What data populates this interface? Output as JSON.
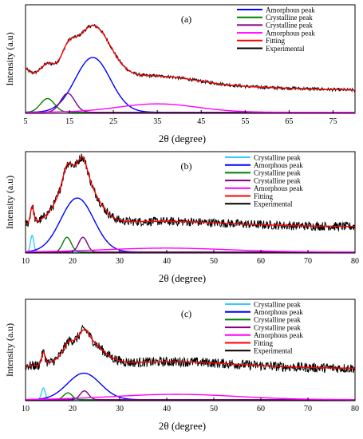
{
  "chart_data": [
    {
      "type": "line",
      "panel_label": "(a)",
      "xlabel": "2θ (degree)",
      "ylabel": "Intensity (a.u)",
      "xlim": [
        5,
        80
      ],
      "xticks": [
        5,
        15,
        25,
        35,
        45,
        55,
        65,
        75
      ],
      "ylim": [
        0,
        1
      ],
      "grid": false,
      "legend_position": "top-right",
      "series": [
        {
          "name": "Amorphous peak",
          "color": "#0000ff",
          "kind": "gaussian",
          "center": 20.3,
          "width": 4.0,
          "height": 0.52
        },
        {
          "name": "Crystalline peak",
          "color": "#008000",
          "kind": "gaussian",
          "center": 10.0,
          "width": 1.6,
          "height": 0.13
        },
        {
          "name": "Crystalline peak",
          "color": "#800080",
          "kind": "gaussian",
          "center": 14.6,
          "width": 1.6,
          "height": 0.18
        },
        {
          "name": "Amorphous peak",
          "color": "#ff00ff",
          "kind": "gaussian",
          "center": 35.0,
          "width": 9.0,
          "height": 0.08
        },
        {
          "name": "Fitting",
          "color": "#ff0000",
          "kind": "fit",
          "baseline": 0.22,
          "baseline_slope": 0.0012,
          "edge_rise": 0.12
        },
        {
          "name": "Experimental",
          "color": "#000000",
          "kind": "noisy",
          "noise": 0.015,
          "step": 0.12
        }
      ]
    },
    {
      "type": "line",
      "panel_label": "(b)",
      "xlabel": "2θ (degree)",
      "ylabel": "Intensity (a.u)",
      "xlim": [
        10,
        80
      ],
      "xticks": [
        10,
        20,
        30,
        40,
        50,
        60,
        70,
        80
      ],
      "ylim": [
        0,
        1
      ],
      "grid": false,
      "legend_position": "top-right",
      "series": [
        {
          "name": "Crystalline peak",
          "color": "#33ccff",
          "kind": "gaussian",
          "center": 11.4,
          "width": 0.35,
          "height": 0.17
        },
        {
          "name": "Amorphous peak",
          "color": "#0000ff",
          "kind": "gaussian",
          "center": 21.0,
          "width": 3.5,
          "height": 0.55
        },
        {
          "name": "Crystalline peak",
          "color": "#008000",
          "kind": "gaussian",
          "center": 18.8,
          "width": 0.9,
          "height": 0.15
        },
        {
          "name": "Crystalline peak",
          "color": "#800080",
          "kind": "gaussian",
          "center": 22.2,
          "width": 0.9,
          "height": 0.15
        },
        {
          "name": "Amorphous peak",
          "color": "#ff00ff",
          "kind": "gaussian",
          "center": 40.0,
          "width": 13.0,
          "height": 0.04
        },
        {
          "name": "Fitting",
          "color": "#ff0000",
          "kind": "fit",
          "baseline": 0.27,
          "baseline_slope": 0.0003,
          "edge_rise": 0.0
        },
        {
          "name": "Experimental",
          "color": "#000000",
          "kind": "noisy",
          "noise": 0.045,
          "step": 0.1
        }
      ]
    },
    {
      "type": "line",
      "panel_label": "(c)",
      "xlabel": "2θ (degree)",
      "ylabel": "Intensity (a.u)",
      "xlim": [
        10,
        80
      ],
      "xticks": [
        10,
        20,
        30,
        40,
        50,
        60,
        70,
        80
      ],
      "ylim": [
        0,
        1
      ],
      "grid": false,
      "legend_position": "top-right",
      "series": [
        {
          "name": "Crystalline peak",
          "color": "#33ccff",
          "kind": "gaussian",
          "center": 13.8,
          "width": 0.4,
          "height": 0.12
        },
        {
          "name": "Amorphous peak",
          "color": "#0000ff",
          "kind": "gaussian",
          "center": 22.4,
          "width": 3.5,
          "height": 0.27
        },
        {
          "name": "Crystalline peak",
          "color": "#008000",
          "kind": "gaussian",
          "center": 19.0,
          "width": 0.9,
          "height": 0.07
        },
        {
          "name": "Crystalline peak",
          "color": "#800080",
          "kind": "gaussian",
          "center": 22.5,
          "width": 0.9,
          "height": 0.09
        },
        {
          "name": "Amorphous peak",
          "color": "#ff00ff",
          "kind": "gaussian",
          "center": 42.0,
          "width": 13.0,
          "height": 0.055
        },
        {
          "name": "Fitting",
          "color": "#ff0000",
          "kind": "fit",
          "baseline": 0.33,
          "baseline_slope": 0.0003,
          "edge_rise": 0.0
        },
        {
          "name": "Experimental",
          "color": "#000000",
          "kind": "noisy",
          "noise": 0.05,
          "step": 0.1
        }
      ]
    }
  ]
}
